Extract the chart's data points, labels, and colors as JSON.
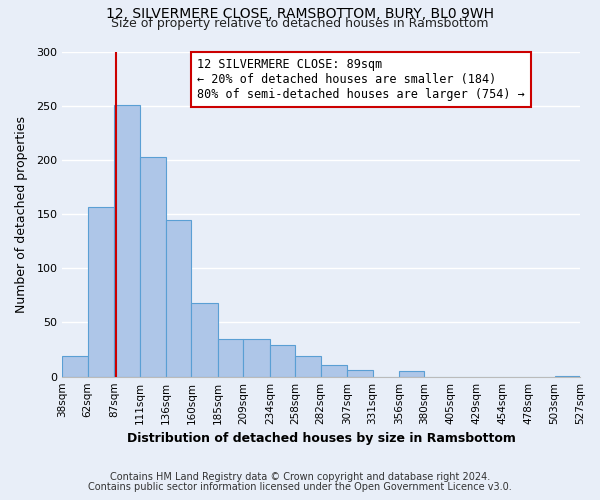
{
  "title": "12, SILVERMERE CLOSE, RAMSBOTTOM, BURY, BL0 9WH",
  "subtitle": "Size of property relative to detached houses in Ramsbottom",
  "xlabel": "Distribution of detached houses by size in Ramsbottom",
  "ylabel": "Number of detached properties",
  "bin_edges": [
    38,
    62,
    87,
    111,
    136,
    160,
    185,
    209,
    234,
    258,
    282,
    307,
    331,
    356,
    380,
    405,
    429,
    454,
    478,
    503,
    527
  ],
  "bin_heights": [
    19,
    157,
    251,
    203,
    145,
    68,
    35,
    35,
    29,
    19,
    11,
    6,
    0,
    5,
    0,
    0,
    0,
    0,
    0,
    1
  ],
  "bar_color": "#aec6e8",
  "bar_edge_color": "#5a9fd4",
  "property_size": 89,
  "property_line_color": "#cc0000",
  "annotation_title": "12 SILVERMERE CLOSE: 89sqm",
  "annotation_line1": "← 20% of detached houses are smaller (184)",
  "annotation_line2": "80% of semi-detached houses are larger (754) →",
  "annotation_box_edge_color": "#cc0000",
  "annotation_box_face_color": "#ffffff",
  "ylim": [
    0,
    300
  ],
  "yticks": [
    0,
    50,
    100,
    150,
    200,
    250,
    300
  ],
  "footnote1": "Contains HM Land Registry data © Crown copyright and database right 2024.",
  "footnote2": "Contains public sector information licensed under the Open Government Licence v3.0.",
  "background_color": "#e8eef8",
  "grid_color": "#ffffff"
}
